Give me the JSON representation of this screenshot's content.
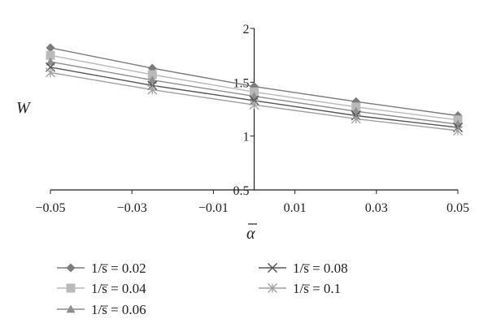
{
  "chart_data": {
    "type": "line",
    "xlabel": "α̅",
    "ylabel": "W",
    "xlim": [
      -0.05,
      0.05
    ],
    "ylim": [
      0.5,
      2
    ],
    "x_ticks": [
      "-0.05",
      "-0.03",
      "-0.01",
      "0.01",
      "0.03",
      "0.05"
    ],
    "x_tick_values": [
      -0.05,
      -0.03,
      -0.01,
      0.01,
      0.03,
      0.05
    ],
    "y_ticks": [
      "0.5",
      "1",
      "1.5",
      "2"
    ],
    "y_tick_values": [
      0.5,
      1,
      1.5,
      2
    ],
    "x": [
      -0.05,
      -0.025,
      0,
      0.025,
      0.05
    ],
    "grid": false,
    "legend_placement": "bottom",
    "series": [
      {
        "name": "1/s̅ = 0.02",
        "marker": "diamond",
        "color": "#7b7b7b",
        "values": [
          1.82,
          1.63,
          1.46,
          1.32,
          1.19
        ]
      },
      {
        "name": "1/s̅ = 0.04",
        "marker": "square",
        "color": "#b9b9b9",
        "values": [
          1.75,
          1.57,
          1.41,
          1.27,
          1.15
        ]
      },
      {
        "name": "1/s̅ = 0.06",
        "marker": "triangle",
        "color": "#8e8e8e",
        "values": [
          1.69,
          1.52,
          1.37,
          1.23,
          1.11
        ]
      },
      {
        "name": "1/s̅ = 0.08",
        "marker": "x",
        "color": "#555555",
        "values": [
          1.64,
          1.47,
          1.33,
          1.19,
          1.08
        ]
      },
      {
        "name": "1/s̅ = 0.1",
        "marker": "star",
        "color": "#a0a0a0",
        "values": [
          1.59,
          1.43,
          1.29,
          1.16,
          1.05
        ]
      }
    ]
  }
}
